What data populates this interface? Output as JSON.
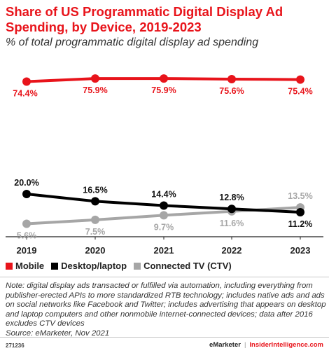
{
  "title": "Share of US Programmatic Digital Display Ad Spending, by Device, 2019-2023",
  "subtitle": "% of total programmatic digital display ad spending",
  "chart_data": {
    "type": "line",
    "categories": [
      "2019",
      "2020",
      "2021",
      "2022",
      "2023"
    ],
    "ylim": [
      0,
      80
    ],
    "grid": false,
    "legend_position": "bottom",
    "series": [
      {
        "name": "Mobile",
        "color": "#e8141b",
        "values": [
          74.4,
          75.9,
          75.9,
          75.6,
          75.4
        ],
        "labels": [
          "74.4%",
          "75.9%",
          "75.9%",
          "75.6%",
          "75.4%"
        ]
      },
      {
        "name": "Desktop/laptop",
        "color": "#000000",
        "values": [
          20.0,
          16.5,
          14.4,
          12.8,
          11.2
        ],
        "labels": [
          "20.0%",
          "16.5%",
          "14.4%",
          "12.8%",
          "11.2%"
        ]
      },
      {
        "name": "Connected TV (CTV)",
        "color": "#a6a6a6",
        "values": [
          5.6,
          7.5,
          9.7,
          11.6,
          13.5
        ],
        "labels": [
          "5.6%",
          "7.5%",
          "9.7%",
          "11.6%",
          "13.5%"
        ]
      }
    ]
  },
  "note": "Note: digital display ads transacted or fulfilled via automation, including everything from publisher-erected APIs to more standardized RTB technology; includes native ads and ads on social networks like Facebook and Twitter; includes advertising that appears on desktop and laptop computers and other nonmobile internet-connected devices; data after 2016 excludes CTV devices",
  "source": "Source: eMarketer, Nov 2021",
  "footer": {
    "chart_id": "271236",
    "brand": "eMarketer",
    "separator": "|",
    "site": "InsiderIntelligence.com"
  }
}
